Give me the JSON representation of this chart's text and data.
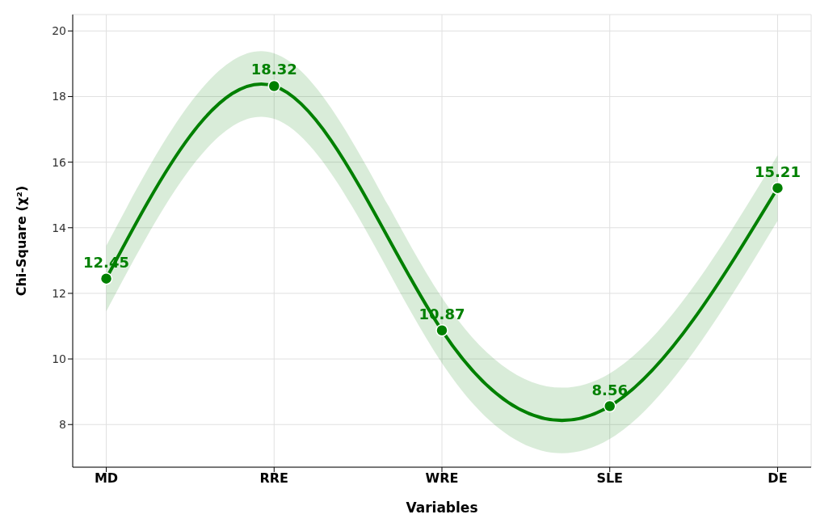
{
  "chart_data": {
    "type": "line",
    "xlabel": "Variables",
    "ylabel": "Chi-Square (χ²)",
    "categories": [
      "MD",
      "RRE",
      "WRE",
      "SLE",
      "DE"
    ],
    "series": [
      {
        "color": "#008000",
        "values": [
          12.45,
          18.32,
          10.87,
          8.56,
          15.21
        ],
        "lower": [
          11.45,
          17.32,
          9.87,
          7.56,
          14.21
        ],
        "upper": [
          13.45,
          19.32,
          11.87,
          9.56,
          16.21
        ]
      }
    ],
    "ylim": [
      6.7,
      20.5
    ],
    "yticks": [
      8,
      10,
      12,
      14,
      16,
      18,
      20
    ],
    "grid": true,
    "marker": "circle",
    "line_style": "solid",
    "data_labels": true,
    "legend": false
  }
}
